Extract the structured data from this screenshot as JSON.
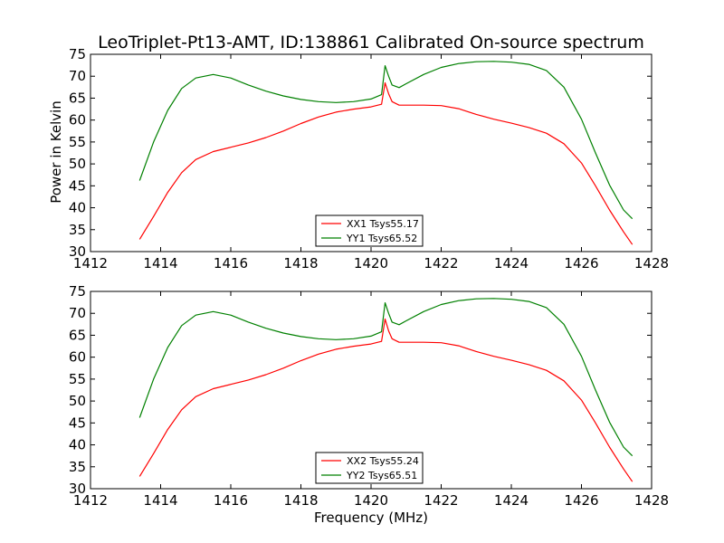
{
  "title": "LeoTriplet-Pt13-AMT, ID:138861 Calibrated On-source spectrum",
  "colors": {
    "xx": "#ff0000",
    "yy": "#008000"
  },
  "chart_data": [
    {
      "type": "line",
      "title": "LeoTriplet-Pt13-AMT, ID:138861 Calibrated On-source spectrum",
      "xlabel": "",
      "ylabel": "Power in Kelvin",
      "xlim": [
        1412,
        1428
      ],
      "ylim": [
        30,
        75
      ],
      "xticks": [
        "1412",
        "1414",
        "1416",
        "1418",
        "1420",
        "1422",
        "1424",
        "1426",
        "1428"
      ],
      "yticks": [
        "30",
        "35",
        "40",
        "45",
        "50",
        "55",
        "60",
        "65",
        "70",
        "75"
      ],
      "legend": "lower-center",
      "series": [
        {
          "name": "XX1 Tsys55.17",
          "color": "#ff0000",
          "x": [
            1413.4,
            1413.8,
            1414.2,
            1414.6,
            1415.0,
            1415.5,
            1416.0,
            1416.5,
            1417.0,
            1417.5,
            1418.0,
            1418.5,
            1419.0,
            1419.5,
            1420.0,
            1420.3,
            1420.4,
            1420.5,
            1420.6,
            1420.8,
            1421.0,
            1421.5,
            1422.0,
            1422.5,
            1423.0,
            1423.5,
            1424.0,
            1424.5,
            1425.0,
            1425.5,
            1426.0,
            1426.4,
            1426.8,
            1427.2,
            1427.45
          ],
          "y": [
            32.8,
            38.0,
            43.5,
            48.0,
            51.0,
            52.8,
            53.8,
            54.8,
            56.0,
            57.5,
            59.2,
            60.7,
            61.8,
            62.5,
            63.0,
            63.6,
            68.5,
            66.0,
            64.2,
            63.4,
            63.4,
            63.4,
            63.3,
            62.6,
            61.3,
            60.2,
            59.3,
            58.3,
            57.0,
            54.6,
            50.2,
            45.0,
            39.5,
            34.5,
            31.6
          ]
        },
        {
          "name": "YY1 Tsys65.52",
          "color": "#008000",
          "x": [
            1413.4,
            1413.8,
            1414.2,
            1414.6,
            1415.0,
            1415.5,
            1416.0,
            1416.5,
            1417.0,
            1417.5,
            1418.0,
            1418.5,
            1419.0,
            1419.5,
            1420.0,
            1420.3,
            1420.4,
            1420.5,
            1420.6,
            1420.8,
            1421.0,
            1421.5,
            1422.0,
            1422.5,
            1423.0,
            1423.5,
            1424.0,
            1424.5,
            1425.0,
            1425.5,
            1426.0,
            1426.4,
            1426.8,
            1427.2,
            1427.45
          ],
          "y": [
            46.2,
            55.0,
            62.2,
            67.2,
            69.6,
            70.4,
            69.6,
            68.0,
            66.6,
            65.5,
            64.7,
            64.2,
            64.0,
            64.2,
            64.8,
            65.8,
            72.4,
            70.0,
            68.0,
            67.4,
            68.3,
            70.4,
            72.0,
            72.9,
            73.3,
            73.4,
            73.2,
            72.7,
            71.3,
            67.5,
            60.2,
            52.5,
            45.2,
            39.5,
            37.5
          ]
        }
      ]
    },
    {
      "type": "line",
      "title": "",
      "xlabel": "Frequency (MHz)",
      "ylabel": "",
      "xlim": [
        1412,
        1428
      ],
      "ylim": [
        30,
        75
      ],
      "xticks": [
        "1412",
        "1414",
        "1416",
        "1418",
        "1420",
        "1422",
        "1424",
        "1426",
        "1428"
      ],
      "yticks": [
        "30",
        "35",
        "40",
        "45",
        "50",
        "55",
        "60",
        "65",
        "70",
        "75"
      ],
      "legend": "lower-center",
      "series": [
        {
          "name": "XX2 Tsys55.24",
          "color": "#ff0000",
          "x": [
            1413.4,
            1413.8,
            1414.2,
            1414.6,
            1415.0,
            1415.5,
            1416.0,
            1416.5,
            1417.0,
            1417.5,
            1418.0,
            1418.5,
            1419.0,
            1419.5,
            1420.0,
            1420.3,
            1420.4,
            1420.5,
            1420.6,
            1420.8,
            1421.0,
            1421.5,
            1422.0,
            1422.5,
            1423.0,
            1423.5,
            1424.0,
            1424.5,
            1425.0,
            1425.5,
            1426.0,
            1426.4,
            1426.8,
            1427.2,
            1427.45
          ],
          "y": [
            32.8,
            38.0,
            43.5,
            48.0,
            51.0,
            52.8,
            53.8,
            54.8,
            56.0,
            57.5,
            59.2,
            60.7,
            61.8,
            62.5,
            63.0,
            63.6,
            68.7,
            66.0,
            64.2,
            63.4,
            63.4,
            63.4,
            63.3,
            62.6,
            61.3,
            60.2,
            59.3,
            58.3,
            57.0,
            54.6,
            50.2,
            45.0,
            39.5,
            34.5,
            31.6
          ]
        },
        {
          "name": "YY2 Tsys65.51",
          "color": "#008000",
          "x": [
            1413.4,
            1413.8,
            1414.2,
            1414.6,
            1415.0,
            1415.5,
            1416.0,
            1416.5,
            1417.0,
            1417.5,
            1418.0,
            1418.5,
            1419.0,
            1419.5,
            1420.0,
            1420.3,
            1420.4,
            1420.5,
            1420.6,
            1420.8,
            1421.0,
            1421.5,
            1422.0,
            1422.5,
            1423.0,
            1423.5,
            1424.0,
            1424.5,
            1425.0,
            1425.5,
            1426.0,
            1426.4,
            1426.8,
            1427.2,
            1427.45
          ],
          "y": [
            46.2,
            55.0,
            62.2,
            67.2,
            69.6,
            70.4,
            69.6,
            68.0,
            66.6,
            65.5,
            64.7,
            64.2,
            64.0,
            64.2,
            64.8,
            65.8,
            72.4,
            70.0,
            68.0,
            67.4,
            68.3,
            70.4,
            72.0,
            72.9,
            73.3,
            73.4,
            73.2,
            72.7,
            71.3,
            67.5,
            60.2,
            52.5,
            45.2,
            39.5,
            37.5
          ]
        }
      ]
    }
  ]
}
